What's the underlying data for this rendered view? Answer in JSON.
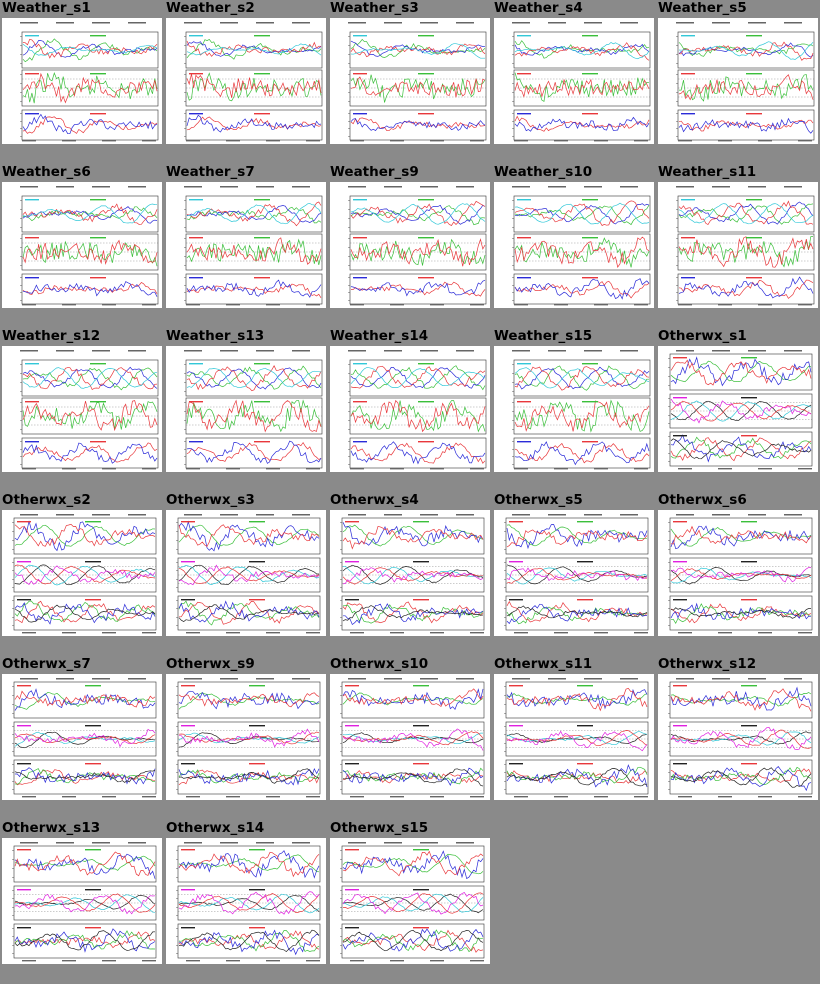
{
  "page": {
    "background": "#8a8a8a"
  },
  "thumbnails": [
    {
      "title": "Weather_s1",
      "kind": "weather"
    },
    {
      "title": "Weather_s2",
      "kind": "weather"
    },
    {
      "title": "Weather_s3",
      "kind": "weather"
    },
    {
      "title": "Weather_s4",
      "kind": "weather"
    },
    {
      "title": "Weather_s5",
      "kind": "weather"
    },
    {
      "title": "Weather_s6",
      "kind": "weather"
    },
    {
      "title": "Weather_s7",
      "kind": "weather"
    },
    {
      "title": "Weather_s9",
      "kind": "weather"
    },
    {
      "title": "Weather_s10",
      "kind": "weather"
    },
    {
      "title": "Weather_s11",
      "kind": "weather"
    },
    {
      "title": "Weather_s12",
      "kind": "weather"
    },
    {
      "title": "Weather_s13",
      "kind": "weather"
    },
    {
      "title": "Weather_s14",
      "kind": "weather"
    },
    {
      "title": "Weather_s15",
      "kind": "weather"
    },
    {
      "title": "Otherwx_s1",
      "kind": "otherwx"
    },
    {
      "title": "Otherwx_s2",
      "kind": "otherwx"
    },
    {
      "title": "Otherwx_s3",
      "kind": "otherwx"
    },
    {
      "title": "Otherwx_s4",
      "kind": "otherwx"
    },
    {
      "title": "Otherwx_s5",
      "kind": "otherwx"
    },
    {
      "title": "Otherwx_s6",
      "kind": "otherwx"
    },
    {
      "title": "Otherwx_s7",
      "kind": "otherwx"
    },
    {
      "title": "Otherwx_s9",
      "kind": "otherwx"
    },
    {
      "title": "Otherwx_s10",
      "kind": "otherwx"
    },
    {
      "title": "Otherwx_s11",
      "kind": "otherwx"
    },
    {
      "title": "Otherwx_s12",
      "kind": "otherwx"
    },
    {
      "title": "Otherwx_s13",
      "kind": "otherwx"
    },
    {
      "title": "Otherwx_s14",
      "kind": "otherwx"
    },
    {
      "title": "Otherwx_s15",
      "kind": "otherwx"
    }
  ],
  "colors": {
    "red": "#e8383c",
    "green": "#3bbf3b",
    "blue": "#2b2bd8",
    "cyan": "#32c8d8",
    "magenta": "#e020e0",
    "black": "#222222"
  }
}
